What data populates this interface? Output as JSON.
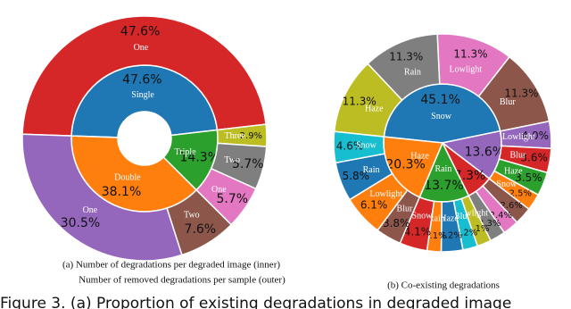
{
  "chart_data": [
    {
      "type": "sunburst",
      "caption": [
        "(a) Number of degradations per degraded image (inner)",
        "Number of removed degradations per sample (outer)"
      ],
      "inner": {
        "categories": [
          "Single",
          "Triple",
          "Double"
        ],
        "values": [
          47.6,
          14.3,
          38.1
        ],
        "value_labels": [
          "47.6%",
          "14.3%",
          "38.1%"
        ],
        "colors": [
          "#1f77b4",
          "#2ca02c",
          "#ff7f0e"
        ]
      },
      "outer": {
        "categories": [
          "One",
          "Three",
          "Two",
          "One",
          "Two",
          "One"
        ],
        "values": [
          47.6,
          2.9,
          5.7,
          5.7,
          7.6,
          30.5
        ],
        "value_labels": [
          "47.6%",
          "2.9%",
          "5.7%",
          "5.7%",
          "7.6%",
          "30.5%"
        ],
        "colors": [
          "#d62728",
          "#bcbd22",
          "#7f7f7f",
          "#e377c2",
          "#8c564b",
          "#9467bd"
        ]
      }
    },
    {
      "type": "sunburst",
      "caption": [
        "(b) Co-existing degradations"
      ],
      "inner": {
        "categories": [
          "Snow",
          null,
          null,
          "Rain",
          "Haze"
        ],
        "values": [
          45.1,
          13.6,
          7.3,
          13.7,
          20.3
        ],
        "value_labels": [
          "45.1%",
          "13.6%",
          "7.3%",
          "13.7%",
          "20.3%"
        ],
        "colors": [
          "#1f77b4",
          "#9467bd",
          "#d62728",
          "#2ca02c",
          "#ff7f0e"
        ]
      },
      "outer": {
        "categories": [
          "Haze",
          "Rain",
          "Lowlight",
          "Blur",
          "Lowlight",
          "Blur",
          "Haze",
          "Snow",
          null,
          null,
          null,
          "Lowlight",
          "Blur",
          "Haze",
          "Rain",
          "Snow",
          "Blur",
          "Lowlight",
          "Rain",
          "Snow"
        ],
        "values": [
          11.3,
          11.3,
          11.3,
          11.3,
          4.0,
          3.6,
          3.5,
          2.5,
          2.6,
          2.4,
          2.3,
          2.1,
          2.2,
          3.2,
          2.1,
          4.1,
          3.8,
          6.1,
          5.8,
          4.6
        ],
        "value_labels": [
          "11.3%",
          "11.3%",
          "11.3%",
          "11.3%",
          "4.0%",
          "3.6%",
          "3.5%",
          "2.5%",
          "2.6%",
          "2.4%",
          "2.3%",
          "2.1%",
          "2.2%",
          "3.2%",
          "2.1%",
          "4.1%",
          "3.8%",
          "6.1%",
          "5.8%",
          "4.6%"
        ],
        "colors": [
          "#bcbd22",
          "#7f7f7f",
          "#e377c2",
          "#8c564b",
          "#9467bd",
          "#d62728",
          "#2ca02c",
          "#ff7f0e",
          "#8c564b",
          "#e377c2",
          "#7f7f7f",
          "#bcbd22",
          "#17becf",
          "#1f77b4",
          "#ff7f0e",
          "#d62728",
          "#8c564b",
          "#ff7f0e",
          "#1f77b4",
          "#17becf"
        ]
      }
    }
  ],
  "figure_caption": "Figure 3. (a) Proportion of existing degradations in degraded image"
}
